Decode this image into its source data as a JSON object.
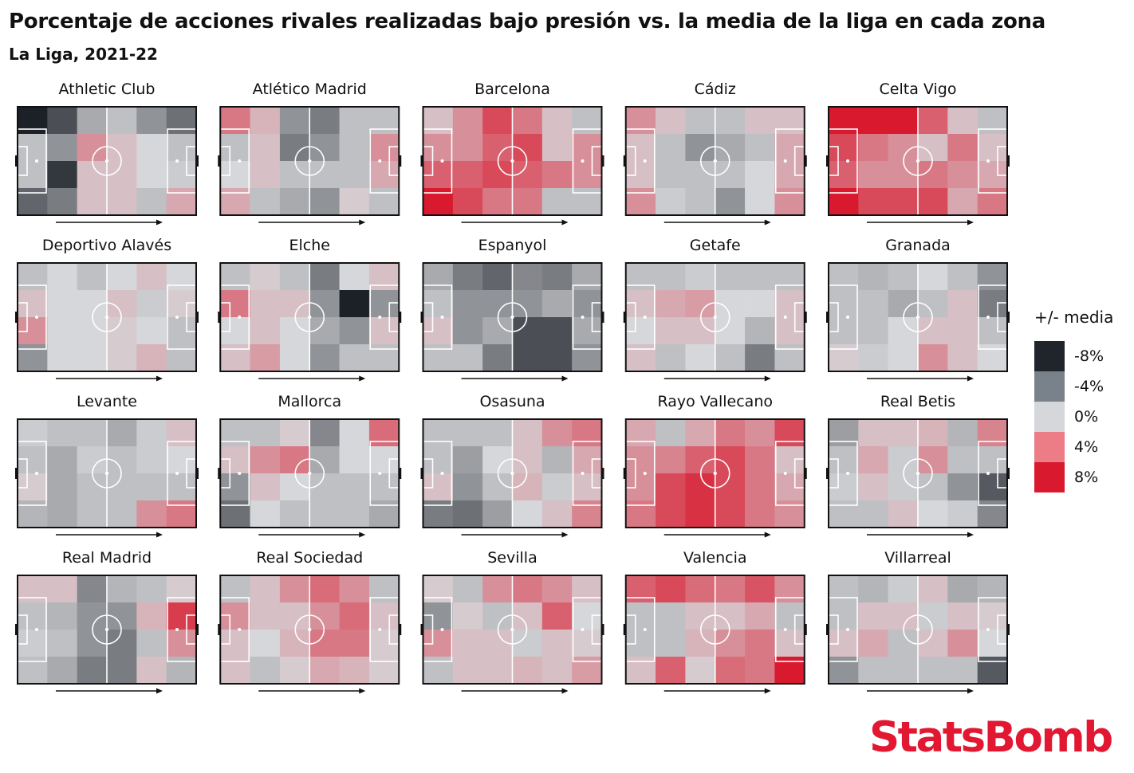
{
  "title": "Porcentaje de acciones rivales realizadas bajo presión vs. la media de la liga en cada zona",
  "subtitle": "La Liga, 2021-22",
  "brand": "StatsBomb",
  "chart_data": {
    "type": "heatmap",
    "grid": {
      "columns": 6,
      "rows": 4
    },
    "color_scale": {
      "min": -8,
      "max": 8,
      "low_color": "#1c2128",
      "mid_color": "#d6d7da",
      "high_color": "#d9192e"
    },
    "legend": {
      "title": "+/- media",
      "items": [
        {
          "label": "-8%",
          "value": -8,
          "color": "#1f252b"
        },
        {
          "label": "-4%",
          "value": -4,
          "color": "#79828b"
        },
        {
          "label": "0%",
          "value": 0,
          "color": "#d6d7da"
        },
        {
          "label": "4%",
          "value": 4,
          "color": "#ec7c86"
        },
        {
          "label": "8%",
          "value": 8,
          "color": "#d9192e"
        }
      ]
    },
    "teams": [
      {
        "name": "Athletic Club",
        "values": [
          [
            -8,
            -6,
            -2,
            -1,
            -3,
            -4.5
          ],
          [
            -1,
            -3,
            3,
            1,
            0,
            -1
          ],
          [
            -1,
            -7,
            1,
            1,
            0,
            -0.5
          ],
          [
            -5,
            -4,
            1,
            1,
            -1,
            2
          ]
        ]
      },
      {
        "name": "Atlético Madrid",
        "values": [
          [
            4,
            1.5,
            -3,
            -4,
            -1,
            -1
          ],
          [
            -1,
            1,
            -4,
            -3,
            -1,
            3
          ],
          [
            0,
            1,
            -1,
            -1,
            -1,
            2
          ],
          [
            2,
            -1,
            -2,
            -3,
            0.5,
            -1
          ]
        ]
      },
      {
        "name": "Barcelona",
        "values": [
          [
            1,
            3,
            6,
            4,
            1,
            -1
          ],
          [
            3,
            3,
            5,
            6,
            1,
            3
          ],
          [
            5,
            5,
            6,
            5,
            4,
            3
          ],
          [
            8,
            6,
            4,
            4,
            -1,
            -1
          ]
        ]
      },
      {
        "name": "Cádiz",
        "values": [
          [
            3,
            1,
            -1,
            -1,
            1,
            1
          ],
          [
            1,
            -1,
            -3,
            -2,
            -1,
            2
          ],
          [
            1,
            -1,
            -1,
            -1,
            0,
            2
          ],
          [
            3,
            -0.5,
            -1,
            -3,
            0,
            3
          ]
        ]
      },
      {
        "name": "Celta Vigo",
        "values": [
          [
            8,
            8,
            8,
            5,
            1,
            -1
          ],
          [
            6,
            4,
            3,
            1,
            4,
            1
          ],
          [
            5,
            3,
            3,
            4,
            3,
            2
          ],
          [
            8,
            6,
            6,
            6,
            2,
            4
          ]
        ]
      },
      {
        "name": "Deportivo Alavés",
        "values": [
          [
            -1,
            0,
            -1,
            0,
            1,
            0
          ],
          [
            1,
            0,
            0,
            1,
            -0.5,
            0.5
          ],
          [
            3,
            0,
            0,
            0.5,
            0,
            -1
          ],
          [
            -3,
            0,
            0,
            0.5,
            1.5,
            -1
          ]
        ]
      },
      {
        "name": "Elche",
        "values": [
          [
            -1,
            0.5,
            -1,
            -4,
            0,
            1
          ],
          [
            4,
            1,
            1,
            -3,
            -8,
            -3
          ],
          [
            0,
            1,
            0,
            -2,
            -3,
            1
          ],
          [
            1,
            2.5,
            0,
            -3,
            -1,
            -1
          ]
        ]
      },
      {
        "name": "Espanyol",
        "values": [
          [
            -2,
            -4,
            -5,
            -3.5,
            -4,
            -2
          ],
          [
            -1,
            -3,
            -3,
            -3,
            -2,
            -3
          ],
          [
            1,
            -3,
            -2,
            -6,
            -6,
            -2
          ],
          [
            -1,
            -1,
            -4,
            -6,
            -6,
            -3
          ]
        ]
      },
      {
        "name": "Getafe",
        "values": [
          [
            -1,
            -1,
            -0.5,
            -1,
            -1,
            -1
          ],
          [
            1,
            2,
            2.5,
            0,
            0,
            1
          ],
          [
            0,
            1,
            1,
            0,
            -1.5,
            1
          ],
          [
            1,
            -1,
            0,
            -1,
            -4,
            -1
          ]
        ]
      },
      {
        "name": "Granada",
        "values": [
          [
            -1,
            -1.5,
            -1,
            0,
            -1,
            -3
          ],
          [
            -1,
            -1,
            -2,
            -1,
            1,
            -4
          ],
          [
            -1,
            -1,
            0,
            1,
            1,
            -1
          ],
          [
            0.5,
            -0.5,
            0,
            3,
            1,
            0
          ]
        ]
      },
      {
        "name": "Levante",
        "values": [
          [
            -0.5,
            -1,
            -1,
            -2,
            -0.5,
            1
          ],
          [
            -1,
            -2,
            -0.5,
            -1,
            -0.5,
            0
          ],
          [
            0.5,
            -2,
            -1,
            -1,
            -1,
            -1
          ],
          [
            -1.5,
            -2,
            -1,
            -1,
            3,
            4
          ]
        ]
      },
      {
        "name": "Mallorca",
        "values": [
          [
            -1,
            -1,
            0.5,
            -3.5,
            0,
            4.5
          ],
          [
            1,
            3,
            4,
            -2,
            0,
            0
          ],
          [
            -3,
            1,
            0,
            -1,
            -1,
            -1
          ],
          [
            -4.5,
            0,
            -1,
            -1,
            -1,
            -2
          ]
        ]
      },
      {
        "name": "Osasuna",
        "values": [
          [
            -1,
            -1,
            -1,
            1,
            3,
            4
          ],
          [
            -1,
            -2.5,
            0,
            1,
            -1.5,
            2
          ],
          [
            1,
            -3,
            -1,
            1.5,
            -0.5,
            1
          ],
          [
            -4,
            -4.5,
            -2.5,
            0,
            1,
            3.5
          ]
        ]
      },
      {
        "name": "Rayo Vallecano",
        "values": [
          [
            2,
            -1,
            2,
            4,
            3,
            6
          ],
          [
            3,
            3.5,
            5,
            6,
            4,
            1
          ],
          [
            3,
            6,
            7,
            6,
            4,
            2
          ],
          [
            4,
            6,
            7,
            6,
            4,
            3
          ]
        ]
      },
      {
        "name": "Real Betis",
        "values": [
          [
            -2.5,
            1,
            1,
            1.5,
            -1.5,
            3.5
          ],
          [
            -1,
            2,
            -0.5,
            3,
            -1,
            -1
          ],
          [
            -0.5,
            1,
            -0.5,
            -1,
            -3,
            -5.5
          ],
          [
            -1,
            -1,
            1,
            0,
            -0.5,
            -3.5
          ]
        ]
      },
      {
        "name": "Real Madrid",
        "values": [
          [
            1,
            1,
            -3.5,
            -1.5,
            -1,
            0.5
          ],
          [
            -1,
            -1.5,
            -3,
            -3,
            1.5,
            6.5
          ],
          [
            -0.5,
            -1,
            -3,
            -4,
            -1,
            3
          ],
          [
            -1,
            -2,
            -4,
            -4,
            1,
            -1.5
          ]
        ]
      },
      {
        "name": "Real Sociedad",
        "values": [
          [
            -1,
            1,
            3,
            4.5,
            3,
            -1
          ],
          [
            3,
            1,
            1,
            3,
            4.5,
            1
          ],
          [
            1,
            0,
            1.5,
            4,
            4,
            0.5
          ],
          [
            1,
            -1,
            0.5,
            2,
            1.5,
            0.5
          ]
        ]
      },
      {
        "name": "Sevilla",
        "values": [
          [
            0.5,
            -1,
            3,
            4,
            3,
            1
          ],
          [
            -3,
            0.5,
            -1,
            1,
            5,
            0
          ],
          [
            3,
            1,
            1,
            -0.5,
            1,
            0.5
          ],
          [
            -1,
            1,
            1,
            1.5,
            1,
            2.5
          ]
        ]
      },
      {
        "name": "Valencia",
        "values": [
          [
            5,
            6,
            4.5,
            4,
            5.5,
            3
          ],
          [
            -1,
            -1,
            1,
            1,
            2,
            -1
          ],
          [
            -1,
            -1,
            1.5,
            3,
            4,
            1
          ],
          [
            1,
            5,
            0.5,
            4.5,
            4,
            8
          ]
        ]
      },
      {
        "name": "Villarreal",
        "values": [
          [
            -1,
            -1.5,
            -0.5,
            1,
            -2,
            -1.5
          ],
          [
            -1,
            1,
            1,
            -0.5,
            1,
            0.5
          ],
          [
            1,
            2,
            -1,
            1,
            3,
            0
          ],
          [
            -3,
            -1,
            -1,
            -1,
            -1,
            -5.5
          ]
        ]
      }
    ]
  }
}
